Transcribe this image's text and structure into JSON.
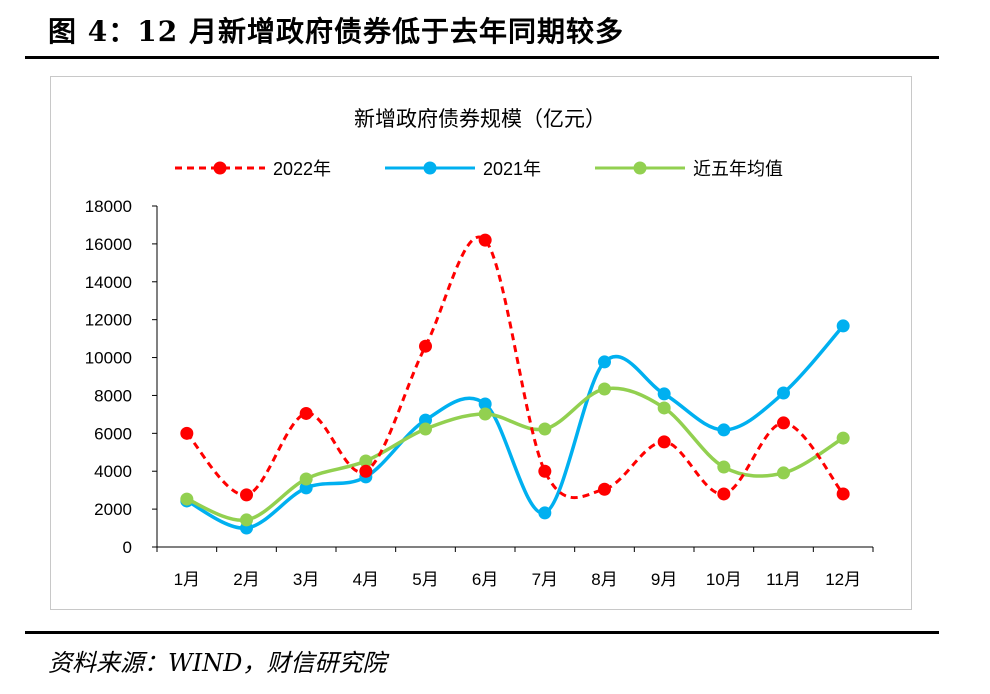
{
  "figure_title": "图 4：12 月新增政府债券低于去年同期较多",
  "source": "资料来源：WIND，财信研究院",
  "chart_data": {
    "type": "line",
    "title": "新增政府债券规模（亿元）",
    "xlabel": "",
    "ylabel": "",
    "categories": [
      "1月",
      "2月",
      "3月",
      "4月",
      "5月",
      "6月",
      "7月",
      "8月",
      "9月",
      "10月",
      "11月",
      "12月"
    ],
    "ylim": [
      0,
      18000
    ],
    "yticks": [
      0,
      2000,
      4000,
      6000,
      8000,
      10000,
      12000,
      14000,
      16000,
      18000
    ],
    "grid": false,
    "legend_position": "top",
    "series": [
      {
        "name": "2022年",
        "color": "#ff0000",
        "dashed": true,
        "values": [
          6000,
          2750,
          7050,
          4000,
          10600,
          16200,
          4000,
          3050,
          5550,
          2800,
          6550,
          2800
        ]
      },
      {
        "name": "2021年",
        "color": "#00b0f0",
        "dashed": false,
        "values": [
          2430,
          1000,
          3120,
          3700,
          6700,
          7550,
          1800,
          9770,
          8080,
          6180,
          8130,
          11670
        ]
      },
      {
        "name": "近五年均值",
        "color": "#92d050",
        "dashed": false,
        "values": [
          2530,
          1430,
          3590,
          4540,
          6230,
          7020,
          6230,
          8340,
          7340,
          4220,
          3910,
          5750
        ]
      }
    ]
  }
}
